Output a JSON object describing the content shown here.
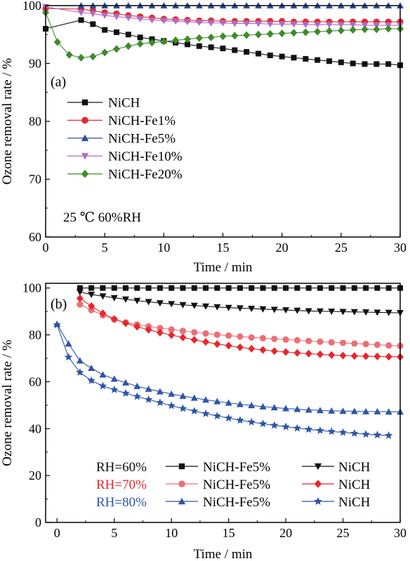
{
  "colors": {
    "black": "#111111",
    "red": "#e8262c",
    "blue": "#2b4ea0",
    "violet": "#b06cc4",
    "green": "#3f8a2a",
    "pink": "#ec6f76",
    "navy": "#2d55a8"
  },
  "chart_data": [
    {
      "type": "line",
      "panel_label": "(a)",
      "xlabel": "Time / min",
      "ylabel": "Ozone removal rate / %",
      "xlim": [
        0,
        30
      ],
      "ylim": [
        60,
        100
      ],
      "xticks": [
        "0",
        "5",
        "10",
        "15",
        "20",
        "25",
        "30"
      ],
      "yticks": [
        "60",
        "70",
        "80",
        "90",
        "100"
      ],
      "annotation": "25 ℃ 60%RH",
      "legend_position": "middle-left",
      "series": [
        {
          "name": "NiCH",
          "color": "#111111",
          "marker": "square",
          "x": [
            0,
            3,
            4,
            5,
            6,
            7,
            8,
            9,
            10,
            11,
            12,
            13,
            14,
            15,
            16,
            17,
            18,
            19,
            20,
            21,
            22,
            23,
            24,
            25,
            26,
            27,
            28,
            29,
            30
          ],
          "y": [
            96,
            97.5,
            96.8,
            95.8,
            95.4,
            95,
            94.5,
            94.2,
            93.9,
            93.6,
            93.3,
            93,
            92.8,
            92.6,
            92.3,
            92,
            91.7,
            91.4,
            91.2,
            91,
            90.8,
            90.6,
            90.4,
            90.2,
            90,
            89.9,
            89.9,
            89.9,
            89.7
          ]
        },
        {
          "name": "NiCH-Fe1%",
          "color": "#e8262c",
          "marker": "circle",
          "x": [
            0,
            3,
            4,
            5,
            6,
            7,
            8,
            9,
            10,
            11,
            12,
            13,
            14,
            15,
            16,
            17,
            18,
            19,
            20,
            21,
            22,
            23,
            24,
            25,
            26,
            27,
            28,
            29,
            30
          ],
          "y": [
            99.5,
            99.4,
            99.1,
            98.8,
            98.6,
            98.3,
            98.1,
            97.9,
            97.7,
            97.6,
            97.5,
            97.4,
            97.4,
            97.3,
            97.3,
            97.3,
            97.3,
            97.3,
            97.3,
            97.2,
            97.2,
            97.2,
            97.2,
            97.2,
            97.2,
            97.2,
            97.2,
            97.2,
            97.2
          ]
        },
        {
          "name": "NiCH-Fe5%",
          "color": "#2b4ea0",
          "marker": "triangle-up",
          "x": [
            3,
            4,
            5,
            6,
            7,
            8,
            9,
            10,
            11,
            12,
            13,
            14,
            15,
            16,
            17,
            18,
            19,
            20,
            21,
            22,
            23,
            24,
            25,
            26,
            27,
            28,
            29,
            30
          ],
          "y": [
            100,
            100,
            100,
            100,
            100,
            100,
            100,
            100,
            100,
            100,
            100,
            100,
            100,
            100,
            100,
            100,
            100,
            100,
            100,
            100,
            100,
            100,
            100,
            100,
            100,
            100,
            100,
            100
          ]
        },
        {
          "name": "NiCH-Fe10%",
          "color": "#b06cc4",
          "marker": "triangle-down",
          "x": [
            0,
            3,
            4,
            5,
            6,
            7,
            8,
            9,
            10,
            11,
            12,
            13,
            14,
            15,
            16,
            17,
            18,
            19,
            20,
            21,
            22,
            23,
            24,
            25,
            26,
            27,
            28,
            29,
            30
          ],
          "y": [
            99.8,
            98.8,
            98.6,
            98.3,
            98.1,
            97.9,
            97.7,
            97.5,
            97.4,
            97.3,
            97.2,
            97.1,
            97,
            97,
            96.9,
            96.9,
            96.9,
            96.8,
            96.8,
            96.8,
            96.7,
            96.7,
            96.7,
            96.7,
            96.7,
            96.6,
            96.6,
            96.6,
            96.6
          ]
        },
        {
          "name": "NiCH-Fe20%",
          "color": "#3f8a2a",
          "marker": "diamond",
          "x": [
            0,
            1,
            2,
            3,
            4,
            5,
            6,
            7,
            8,
            9,
            10,
            11,
            12,
            13,
            14,
            15,
            16,
            17,
            18,
            19,
            20,
            21,
            22,
            23,
            24,
            25,
            26,
            27,
            28,
            29,
            30
          ],
          "y": [
            98.8,
            93.7,
            91.5,
            91,
            91.2,
            91.9,
            92.5,
            93,
            93.4,
            93.6,
            93.8,
            94,
            94.2,
            94.4,
            94.5,
            94.7,
            94.8,
            94.9,
            95,
            95.1,
            95.2,
            95.3,
            95.4,
            95.5,
            95.6,
            95.7,
            95.8,
            95.9,
            95.9,
            96,
            96
          ]
        }
      ]
    },
    {
      "type": "line",
      "panel_label": "(b)",
      "xlabel": "Time / min",
      "ylabel": "Ozone removal rate / %",
      "xlim": [
        -1,
        30
      ],
      "ylim": [
        0,
        102
      ],
      "xticks": [
        "0",
        "5",
        "10",
        "15",
        "20",
        "25",
        "30"
      ],
      "yticks": [
        "0",
        "20",
        "40",
        "60",
        "80",
        "100"
      ],
      "legend_position": "bottom",
      "legend_rows": [
        {
          "label": "RH=60%",
          "color": "#111111"
        },
        {
          "label": "RH=70%",
          "color": "#e8262c"
        },
        {
          "label": "RH=80%",
          "color": "#2d55a8"
        }
      ],
      "series": [
        {
          "name": "NiCH-Fe5%",
          "group": "RH=60%",
          "color": "#111111",
          "marker": "square",
          "x": [
            2,
            3,
            4,
            5,
            6,
            7,
            8,
            9,
            10,
            11,
            12,
            13,
            14,
            15,
            16,
            17,
            18,
            19,
            20,
            21,
            22,
            23,
            24,
            25,
            26,
            27,
            28,
            29,
            30
          ],
          "y": [
            100,
            100,
            100,
            100,
            100,
            100,
            100,
            100,
            100,
            100,
            100,
            100,
            100,
            100,
            100,
            100,
            100,
            100,
            100,
            100,
            100,
            100,
            100,
            100,
            100,
            100,
            100,
            100,
            100
          ]
        },
        {
          "name": "NiCH",
          "group": "RH=60%",
          "color": "#111111",
          "marker": "triangle-down",
          "x": [
            2,
            3,
            4,
            5,
            6,
            7,
            8,
            9,
            10,
            11,
            12,
            13,
            14,
            15,
            16,
            17,
            18,
            19,
            20,
            21,
            22,
            23,
            24,
            25,
            26,
            27,
            28,
            29,
            30
          ],
          "y": [
            98.3,
            97.2,
            96.5,
            95.8,
            95.2,
            94.6,
            94.1,
            93.6,
            93.2,
            92.8,
            92.5,
            92.2,
            91.9,
            91.6,
            91.4,
            91.2,
            91,
            90.8,
            90.6,
            90.4,
            90.2,
            90.1,
            90,
            89.9,
            89.8,
            89.7,
            89.6,
            89.5,
            89.4
          ]
        },
        {
          "name": "NiCH-Fe5%",
          "group": "RH=70%",
          "color": "#ec6f76",
          "marker": "circle",
          "x": [
            2,
            3,
            4,
            5,
            6,
            7,
            8,
            9,
            10,
            11,
            12,
            13,
            14,
            15,
            16,
            17,
            18,
            19,
            20,
            21,
            22,
            23,
            24,
            25,
            26,
            27,
            28,
            29,
            30
          ],
          "y": [
            93,
            90.6,
            88.4,
            86.6,
            85.3,
            84.4,
            83.6,
            82.9,
            82.3,
            81.7,
            81.1,
            80.6,
            80.1,
            79.7,
            79.3,
            78.9,
            78.6,
            78.3,
            78,
            77.7,
            77.4,
            77.1,
            76.8,
            76.6,
            76.3,
            76.1,
            75.8,
            75.5,
            75.3
          ]
        },
        {
          "name": "NiCH",
          "group": "RH=70%",
          "color": "#e8262c",
          "marker": "diamond",
          "x": [
            2,
            3,
            4,
            5,
            6,
            7,
            8,
            9,
            10,
            11,
            12,
            13,
            14,
            15,
            16,
            17,
            18,
            19,
            20,
            21,
            22,
            23,
            24,
            25,
            26,
            27,
            28,
            29,
            30
          ],
          "y": [
            95.6,
            92.3,
            89.2,
            86.8,
            85,
            83.5,
            82.2,
            81,
            79.9,
            78.9,
            77.9,
            77,
            76.1,
            75.4,
            74.7,
            74.1,
            73.6,
            73.1,
            72.7,
            72.3,
            72,
            71.7,
            71.4,
            71.2,
            71,
            70.9,
            70.8,
            70.7,
            70.6
          ]
        },
        {
          "name": "NiCH-Fe5%",
          "group": "RH=80%",
          "color": "#2d55a8",
          "marker": "triangle-up",
          "x": [
            0,
            1,
            2,
            3,
            4,
            5,
            6,
            7,
            8,
            9,
            10,
            11,
            12,
            13,
            14,
            15,
            16,
            17,
            18,
            19,
            20,
            21,
            22,
            23,
            24,
            25,
            26,
            27,
            28,
            29,
            30
          ],
          "y": [
            84.6,
            76.2,
            69,
            65.8,
            63,
            61.2,
            59.6,
            58.1,
            56.9,
            55.8,
            54.8,
            53.9,
            53.1,
            52.3,
            51.6,
            51,
            50.4,
            49.9,
            49.4,
            49,
            48.6,
            48.3,
            48,
            47.8,
            47.6,
            47.5,
            47.4,
            47.3,
            47.3,
            47.2,
            47.2
          ]
        },
        {
          "name": "NiCH",
          "group": "RH=80%",
          "color": "#2d55a8",
          "marker": "star",
          "x": [
            0,
            1,
            2,
            3,
            4,
            5,
            6,
            7,
            8,
            9,
            10,
            11,
            12,
            13,
            14,
            15,
            16,
            17,
            18,
            19,
            20,
            21,
            22,
            23,
            24,
            25,
            26,
            27,
            28,
            29
          ],
          "y": [
            84.3,
            70.5,
            64,
            60.5,
            58.2,
            56.6,
            55.1,
            53.7,
            52.4,
            51.1,
            49.8,
            48.6,
            47.5,
            46.4,
            45.4,
            44.5,
            43.6,
            42.8,
            42.1,
            41.4,
            40.8,
            40.2,
            39.7,
            39.2,
            38.8,
            38.4,
            38,
            37.6,
            37.3,
            37.1
          ]
        }
      ]
    }
  ]
}
